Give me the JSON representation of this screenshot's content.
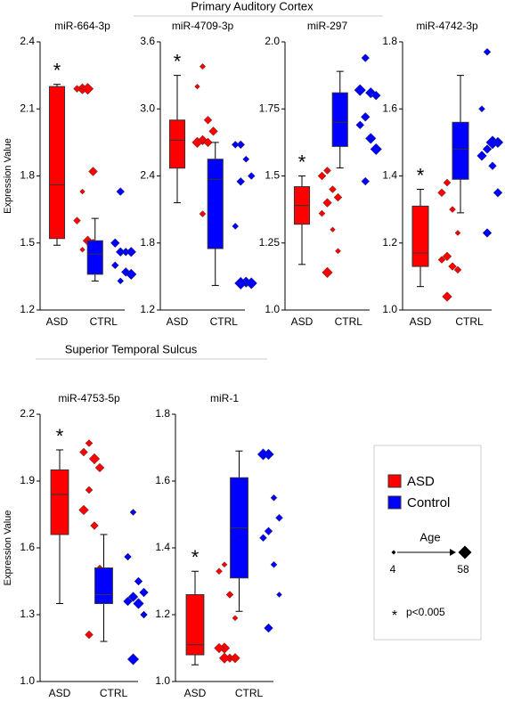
{
  "sections": [
    "Primary Auditory Cortex",
    "Superior Temporal Sulcus"
  ],
  "chart_data": [
    {
      "type": "box",
      "section": 0,
      "title": "miR-664-3p",
      "ylabel": "Expression Value",
      "annotation": "*",
      "ylim": [
        1.2,
        2.4
      ],
      "yticks": [
        1.2,
        1.5,
        1.8,
        2.1,
        2.4
      ],
      "categories": [
        "ASD",
        "CTRL"
      ],
      "groups": [
        {
          "color": "#ff0000",
          "box": [
            1.49,
            1.52,
            1.76,
            2.2,
            2.21
          ],
          "values": [
            2.19,
            2.19,
            2.19,
            1.82,
            1.73,
            1.6,
            1.51,
            1.5,
            1.47
          ],
          "ages": [
            40,
            20,
            45,
            30,
            8,
            20,
            35,
            25,
            8
          ]
        },
        {
          "color": "#0000ff",
          "box": [
            1.33,
            1.36,
            1.45,
            1.51,
            1.61
          ],
          "values": [
            1.73,
            1.5,
            1.46,
            1.46,
            1.46,
            1.4,
            1.37,
            1.36,
            1.33
          ],
          "ages": [
            25,
            30,
            25,
            35,
            30,
            20,
            30,
            40,
            15
          ]
        }
      ]
    },
    {
      "type": "box",
      "section": 0,
      "title": "miR-4709-3p",
      "annotation": "*",
      "ylim": [
        1.2,
        3.6
      ],
      "yticks": [
        1.2,
        1.8,
        2.4,
        {
          "value": 3,
          "label": "3.0"
        },
        3.6
      ],
      "categories": [
        "ASD",
        "CTRL"
      ],
      "groups": [
        {
          "color": "#ff0000",
          "box": [
            2.16,
            2.47,
            2.72,
            2.9,
            3.3
          ],
          "values": [
            3.38,
            3.2,
            2.9,
            2.8,
            2.72,
            2.7,
            2.7,
            2.5,
            2.06
          ],
          "ages": [
            12,
            8,
            25,
            30,
            35,
            40,
            30,
            20,
            15
          ]
        },
        {
          "color": "#0000ff",
          "box": [
            1.42,
            1.75,
            2.37,
            2.55,
            2.7
          ],
          "values": [
            2.68,
            2.68,
            2.55,
            2.4,
            2.35,
            1.95,
            1.45,
            1.44,
            1.44
          ],
          "ages": [
            25,
            20,
            15,
            20,
            25,
            15,
            40,
            45,
            50
          ]
        }
      ]
    },
    {
      "type": "box",
      "section": 0,
      "title": "miR-297",
      "annotation": "*",
      "ylim": [
        1.0,
        2.0
      ],
      "yticks": [
        {
          "value": 1,
          "label": "1.0"
        },
        1.25,
        1.5,
        1.75,
        {
          "value": 2,
          "label": "2.0"
        }
      ],
      "categories": [
        "ASD",
        "CTRL"
      ],
      "groups": [
        {
          "color": "#ff0000",
          "box": [
            1.17,
            1.32,
            1.39,
            1.46,
            1.5
          ],
          "values": [
            1.52,
            1.5,
            1.45,
            1.42,
            1.4,
            1.36,
            1.3,
            1.22,
            1.14
          ],
          "ages": [
            20,
            25,
            20,
            25,
            30,
            15,
            8,
            10,
            40
          ]
        },
        {
          "color": "#0000ff",
          "box": [
            1.53,
            1.61,
            1.7,
            1.81,
            1.89
          ],
          "values": [
            1.94,
            1.82,
            1.81,
            1.8,
            1.72,
            1.69,
            1.64,
            1.6,
            1.48
          ],
          "ages": [
            25,
            45,
            40,
            30,
            30,
            25,
            40,
            45,
            25
          ]
        }
      ]
    },
    {
      "type": "box",
      "section": 0,
      "title": "miR-4742-3p",
      "annotation": "*",
      "ylim": [
        1.0,
        1.8
      ],
      "yticks": [
        {
          "value": 1,
          "label": "1.0"
        },
        1.2,
        1.4,
        1.6,
        1.8
      ],
      "categories": [
        "ASD",
        "CTRL"
      ],
      "groups": [
        {
          "color": "#ff0000",
          "box": [
            1.07,
            1.13,
            1.17,
            1.31,
            1.36
          ],
          "values": [
            1.38,
            1.35,
            1.3,
            1.23,
            1.16,
            1.15,
            1.13,
            1.12,
            1.04
          ],
          "ages": [
            20,
            25,
            15,
            10,
            30,
            20,
            25,
            20,
            35
          ]
        },
        {
          "color": "#0000ff",
          "box": [
            1.29,
            1.39,
            1.48,
            1.56,
            1.7
          ],
          "values": [
            1.77,
            1.6,
            1.5,
            1.5,
            1.48,
            1.46,
            1.43,
            1.35,
            1.23
          ],
          "ages": [
            20,
            15,
            55,
            40,
            30,
            35,
            25,
            30,
            30
          ]
        }
      ]
    },
    {
      "type": "box",
      "section": 1,
      "title": "miR-4753-5p",
      "ylabel": "Expression Value",
      "annotation": "*",
      "ylim": [
        1.0,
        2.2
      ],
      "yticks": [
        {
          "value": 1,
          "label": "1.0"
        },
        1.3,
        1.6,
        1.9,
        2.2
      ],
      "categories": [
        "ASD",
        "CTRL"
      ],
      "groups": [
        {
          "color": "#ff0000",
          "box": [
            1.35,
            1.66,
            1.84,
            1.95,
            2.04
          ],
          "values": [
            2.07,
            2.03,
            2.0,
            1.96,
            1.86,
            1.77,
            1.7,
            1.5,
            1.21
          ],
          "ages": [
            20,
            25,
            40,
            30,
            20,
            35,
            25,
            40,
            25
          ]
        },
        {
          "color": "#0000ff",
          "box": [
            1.18,
            1.35,
            1.39,
            1.51,
            1.66
          ],
          "values": [
            1.76,
            1.56,
            1.45,
            1.4,
            1.38,
            1.36,
            1.35,
            1.3,
            1.1
          ],
          "ages": [
            15,
            20,
            25,
            30,
            35,
            30,
            40,
            20,
            45
          ]
        }
      ]
    },
    {
      "type": "box",
      "section": 1,
      "title": "miR-1",
      "annotation": "*",
      "ylim": [
        1.0,
        1.8
      ],
      "yticks": [
        {
          "value": 1,
          "label": "1.0"
        },
        1.2,
        1.4,
        1.6,
        1.8
      ],
      "categories": [
        "ASD",
        "CTRL"
      ],
      "groups": [
        {
          "color": "#ff0000",
          "box": [
            1.05,
            1.08,
            1.11,
            1.26,
            1.33
          ],
          "values": [
            1.35,
            1.33,
            1.26,
            1.19,
            1.1,
            1.1,
            1.07,
            1.07,
            1.07
          ],
          "ages": [
            10,
            15,
            20,
            10,
            40,
            35,
            30,
            35,
            40
          ]
        },
        {
          "color": "#0000ff",
          "box": [
            1.21,
            1.31,
            1.46,
            1.61,
            1.69
          ],
          "values": [
            1.68,
            1.68,
            1.55,
            1.49,
            1.45,
            1.43,
            1.35,
            1.26,
            1.16
          ],
          "ages": [
            40,
            45,
            15,
            20,
            25,
            20,
            15,
            10,
            30
          ]
        }
      ]
    }
  ],
  "legend": {
    "items": [
      {
        "label": "ASD",
        "color": "#ff0000"
      },
      {
        "label": "Control",
        "color": "#0000ff"
      }
    ],
    "size_title": "Age",
    "size_min": 4,
    "size_max": 58,
    "note_symbol": "*",
    "note_text": "p<0.005"
  }
}
